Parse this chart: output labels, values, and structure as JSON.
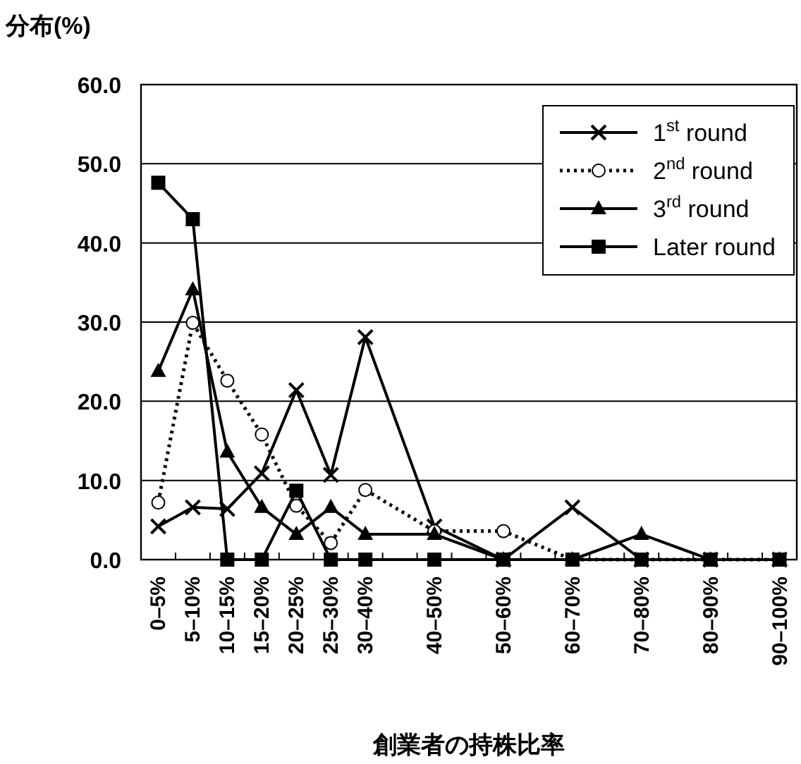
{
  "chart_data": {
    "type": "line",
    "ylabel": "分布(%)",
    "xlabel": "創業者の持株比率",
    "categories": [
      "0–5%",
      "5–10%",
      "10–15%",
      "15–20%",
      "20–25%",
      "25–30%",
      "30–40%",
      null,
      "40–50%",
      null,
      "50–60%",
      null,
      "60–70%",
      null,
      "70–80%",
      null,
      "80–90%",
      null,
      "90–100%"
    ],
    "ylim": [
      0,
      60
    ],
    "yticks": [
      {
        "value": 0,
        "label": "0.0"
      },
      {
        "value": 10,
        "label": "10.0"
      },
      {
        "value": 20,
        "label": "20.0"
      },
      {
        "value": 30,
        "label": "30.0"
      },
      {
        "value": 40,
        "label": "40.0"
      },
      {
        "value": 50,
        "label": "50.0"
      },
      {
        "value": 60,
        "label": "60.0"
      }
    ],
    "grid": "y",
    "legend": "top right",
    "series": [
      {
        "name": "1$^{st}$ round",
        "color": "#000000",
        "marker": "cross",
        "line_style": "solid",
        "values": [
          4.2,
          6.6,
          6.4,
          10.9,
          21.4,
          10.7,
          28.1,
          null,
          4.2,
          null,
          0,
          null,
          6.6,
          null,
          0,
          null,
          0,
          null,
          0
        ]
      },
      {
        "name": "2$^{nd}$ round",
        "color": "#000000",
        "marker": "circle",
        "line_style": "dotted",
        "values": [
          7.2,
          29.9,
          22.6,
          15.8,
          6.8,
          2.1,
          8.8,
          null,
          3.6,
          null,
          3.6,
          null,
          0,
          null,
          0,
          null,
          0,
          null,
          0
        ]
      },
      {
        "name": "3$^{rd}$ round",
        "color": "#000000",
        "marker": "triangle",
        "line_style": "solid",
        "values": [
          23.8,
          34.1,
          13.6,
          6.6,
          3.2,
          6.6,
          3.2,
          null,
          3.2,
          null,
          0,
          null,
          0,
          null,
          3.2,
          null,
          0,
          null,
          0
        ]
      },
      {
        "name": "Later round",
        "color": "#000000",
        "marker": "square",
        "line_style": "solid",
        "values": [
          47.6,
          43.0,
          0,
          0,
          8.7,
          0,
          0,
          null,
          0,
          null,
          0,
          null,
          0,
          null,
          0,
          null,
          0,
          null,
          0
        ]
      }
    ]
  }
}
